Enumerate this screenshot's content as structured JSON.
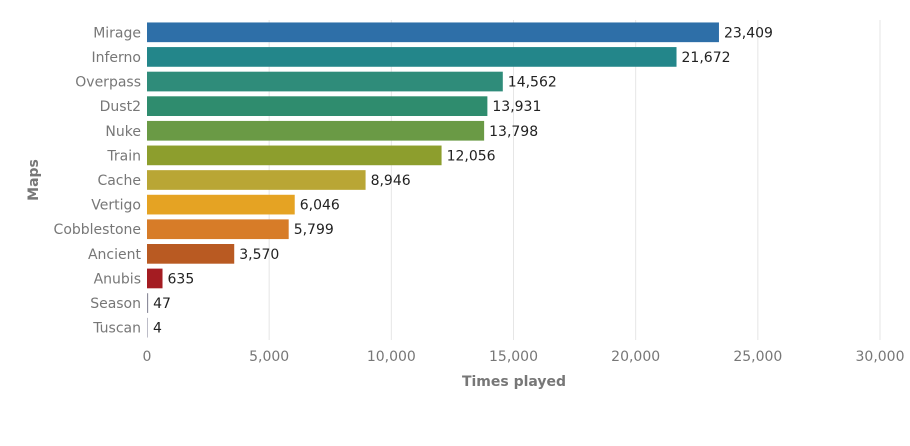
{
  "chart_data": {
    "type": "bar",
    "orientation": "horizontal",
    "categories": [
      "Mirage",
      "Inferno",
      "Overpass",
      "Dust2",
      "Nuke",
      "Train",
      "Cache",
      "Vertigo",
      "Cobblestone",
      "Ancient",
      "Anubis",
      "Season",
      "Tuscan"
    ],
    "values": [
      23409,
      21672,
      14562,
      13931,
      13798,
      12056,
      8946,
      6046,
      5799,
      3570,
      635,
      47,
      4
    ],
    "value_labels": [
      "23,409",
      "21,672",
      "14,562",
      "13,931",
      "13,798",
      "12,056",
      "8,946",
      "6,046",
      "5,799",
      "3,570",
      "635",
      "47",
      "4"
    ],
    "colors": [
      "#2e6fa8",
      "#23868a",
      "#2f8c7a",
      "#2f8c6e",
      "#6a9a45",
      "#8d9e2d",
      "#b9a635",
      "#e5a323",
      "#d77c28",
      "#b95a22",
      "#a41c22",
      "#8d8d9c",
      "#bdbdc8"
    ],
    "xlabel": "Times played",
    "ylabel": "Maps",
    "xlim": [
      0,
      30000
    ],
    "x_ticks": [
      0,
      5000,
      10000,
      15000,
      20000,
      25000,
      30000
    ],
    "x_tick_labels": [
      "0",
      "5,000",
      "10,000",
      "15,000",
      "20,000",
      "25,000",
      "30,000"
    ],
    "grid": true
  }
}
